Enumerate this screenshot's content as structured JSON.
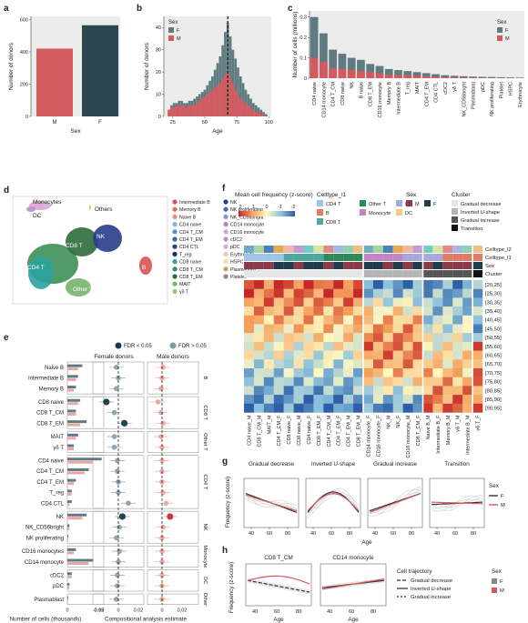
{
  "panels": {
    "a": {
      "letter": "a",
      "ylabel": "Number of donors",
      "xlabel": "Sex",
      "yticks": [
        "0",
        "200",
        "400",
        "600"
      ],
      "categories": [
        "M",
        "F"
      ]
    },
    "b": {
      "letter": "b",
      "ylabel": "Number of donors",
      "xlabel": "Age",
      "yticks": [
        "0",
        "10",
        "20",
        "30",
        "40"
      ],
      "xticks": [
        "25",
        "50",
        "75",
        "100"
      ],
      "legend_title": "Sex",
      "legend": [
        "F",
        "M"
      ]
    },
    "c": {
      "letter": "c",
      "ylabel": "Number of cells (millions)",
      "yticks": [
        "0",
        "0.1",
        "0.2",
        "0.3"
      ],
      "legend_title": "Sex",
      "legend": [
        "F",
        "M"
      ]
    },
    "d": {
      "letter": "d",
      "cluster_labels": [
        "Monocytes",
        "DC",
        "Others",
        "CD8 T",
        "NK",
        "B",
        "CD4 T",
        "Other T"
      ],
      "legend_col1": [
        "Intermediate B",
        "Memory B",
        "Naive B",
        "CD4 naive",
        "CD4 T_CM",
        "CD4 T_EM",
        "CD4 CTL",
        "T_reg",
        "CD8 naive",
        "CD8 T_CM",
        "CD8 T_EM",
        "MAIT",
        "γδ T"
      ],
      "legend_col2": [
        "NK",
        "NK proliferating",
        "NK_CD56bright",
        "CD14 monocyte",
        "CD16 monocyte",
        "cDC2",
        "pDC",
        "Erythrocyte",
        "HSPC",
        "Plasmablast",
        "Platelet"
      ]
    },
    "e": {
      "letter": "e",
      "fdr_sig": "FDR < 0.05",
      "fdr_ns": "FDR > 0.05",
      "col_female": "Female donors",
      "col_male": "Male donors",
      "xlabel_cells": "Number of cells (thousands)",
      "xticks_cells": [
        "0",
        "0.15"
      ],
      "xlabel_est": "Compositional analysis estimate",
      "xticks_f": [
        "-0.02",
        "0",
        "0.02"
      ],
      "xticks_m": [
        "0",
        "0.02"
      ],
      "groups": [
        "B",
        "CD8 T",
        "Other T",
        "CD4 T",
        "NK",
        "Monocyte",
        "DC",
        "Other"
      ]
    },
    "f": {
      "letter": "f",
      "title": "Mean cell frequency (z-score)",
      "scale_ticks": [
        "2",
        "1",
        "0",
        "-1",
        "-2"
      ],
      "celltype_title": "Celltype_l1",
      "celltypes": [
        "CD4 T",
        "Other T",
        "NK",
        "B",
        "Monocyte",
        "DC",
        "CD8 T"
      ],
      "sex_title": "Sex",
      "sex_values": [
        "M",
        "F"
      ],
      "cluster_title": "Cluster",
      "clusters": [
        "Gradual decrease",
        "Inverted U-shape",
        "Gradual increase",
        "Transition"
      ],
      "row_annot": [
        "Celltype_l2",
        "Celltype_l1",
        "Sex",
        "Cluster"
      ],
      "age_bins": [
        "[20,25]",
        "[25,30]",
        "[30,35]",
        "[35,40]",
        "[40,45]",
        "[45,50]",
        "[50,55]",
        "[55,60]",
        "[60,65]",
        "[65,70]",
        "[70,75]",
        "[75,80]",
        "[80,85]",
        "[85,90]",
        "[90,95]"
      ]
    },
    "g": {
      "letter": "g",
      "ylabel": "Frequency (z-score)",
      "xlabel": "Age",
      "xticks": [
        "40",
        "60",
        "80"
      ],
      "titles": [
        "Gradual decrease",
        "Inverted U-shape",
        "Gradual increase",
        "Transition"
      ],
      "legend_title": "Sex",
      "legend": [
        "F",
        "M"
      ]
    },
    "h": {
      "letter": "h",
      "ylabel": "Frequency (z-score)",
      "xlabel": "Age",
      "titles": [
        "CD8 T_CM",
        "CD14 monocyte"
      ],
      "traj_title": "Cell trajectory",
      "traj": [
        "Gradual decrease",
        "Inverted U-shape",
        "Gradual increase"
      ],
      "legend_title": "Sex",
      "legend": [
        "F",
        "M"
      ]
    }
  },
  "colors": {
    "female": "#2d4750",
    "female_light": "#5f7b82",
    "male": "#d35a5f",
    "male_light": "#e8a7a3"
  },
  "chart_data": [
    {
      "type": "bar",
      "panel": "a",
      "categories": [
        "M",
        "F"
      ],
      "values": [
        420,
        565
      ],
      "ylim": [
        0,
        620
      ]
    },
    {
      "type": "bar",
      "panel": "b",
      "x": [
        22,
        24,
        26,
        28,
        30,
        32,
        34,
        36,
        38,
        40,
        42,
        44,
        46,
        48,
        50,
        52,
        54,
        56,
        58,
        60,
        62,
        64,
        66,
        68,
        70,
        72,
        74,
        76,
        78,
        80,
        82,
        84,
        86,
        88,
        90,
        92,
        94,
        96,
        98
      ],
      "series": [
        {
          "name": "F",
          "values": [
            3,
            5,
            6,
            6,
            7,
            7,
            6,
            6,
            7,
            7,
            8,
            9,
            10,
            11,
            12,
            14,
            16,
            18,
            21,
            24,
            27,
            32,
            38,
            42,
            36,
            30,
            26,
            22,
            18,
            15,
            12,
            10,
            8,
            6,
            5,
            4,
            3,
            2,
            1
          ]
        },
        {
          "name": "M",
          "values": [
            3,
            4,
            4,
            5,
            5,
            5,
            5,
            4,
            5,
            5,
            5,
            6,
            7,
            8,
            9,
            10,
            11,
            12,
            13,
            14,
            15,
            17,
            19,
            20,
            18,
            15,
            12,
            10,
            8,
            7,
            6,
            5,
            4,
            3,
            2,
            2,
            1,
            1,
            0
          ]
        }
      ],
      "ylim": [
        0,
        45
      ]
    },
    {
      "type": "bar",
      "panel": "c",
      "categories": [
        "CD4 naive",
        "CD14 monocyte",
        "CD4 T_CM",
        "CD8 naive",
        "NK",
        "B naive",
        "CD8 T_EM",
        "CD16 monocyte",
        "Memory B",
        "Intermediate B",
        "T_reg",
        "MAIT",
        "CD4 T_EM",
        "CD4 CTL",
        "cDC2",
        "γδ T",
        "NK_CD56bright",
        "Plasmablast",
        "pDC",
        "NK proliferating",
        "Platelet",
        "HSPC",
        "Erythrocyte"
      ],
      "series": [
        {
          "name": "F",
          "values": [
            0.3,
            0.22,
            0.14,
            0.12,
            0.1,
            0.09,
            0.07,
            0.06,
            0.045,
            0.04,
            0.035,
            0.03,
            0.025,
            0.02,
            0.015,
            0.012,
            0.01,
            0.008,
            0.007,
            0.006,
            0.005,
            0.004,
            0.003
          ]
        },
        {
          "name": "M",
          "values": [
            0.1,
            0.08,
            0.05,
            0.045,
            0.04,
            0.035,
            0.03,
            0.025,
            0.018,
            0.016,
            0.014,
            0.012,
            0.01,
            0.008,
            0.006,
            0.005,
            0.004,
            0.003,
            0.003,
            0.002,
            0.002,
            0.001,
            0.001
          ]
        }
      ],
      "ylim": [
        0,
        0.33
      ]
    },
    {
      "type": "scatter",
      "panel": "e",
      "categories": [
        "Naive B",
        "Intermediate B",
        "Memory B",
        "CD8 naive",
        "CD8 T_CM",
        "CD8 T_EM",
        "MAIT",
        "γδ T",
        "CD4 naive",
        "CD4 T_CM",
        "CD4 T_EM",
        "T_reg",
        "CD4 CTL",
        "NK",
        "NK_CD56bright",
        "NK proliferating",
        "CD16 monocytes",
        "CD14 monocyte",
        "cDC2",
        "pDC",
        "Plasmablast"
      ],
      "series": [
        {
          "name": "cells_F",
          "values": [
            0.07,
            0.05,
            0.04,
            0.06,
            0.04,
            0.09,
            0.05,
            0.03,
            0.16,
            0.1,
            0.04,
            0.02,
            0.02,
            0.09,
            0.01,
            0.005,
            0.04,
            0.12,
            0.02,
            0.01,
            0.004
          ]
        },
        {
          "name": "cells_M",
          "values": [
            0.05,
            0.04,
            0.03,
            0.05,
            0.04,
            0.06,
            0.04,
            0.03,
            0.12,
            0.08,
            0.03,
            0.02,
            0.01,
            0.07,
            0.01,
            0.004,
            0.03,
            0.1,
            0.02,
            0.01,
            0.003
          ]
        },
        {
          "name": "female_est",
          "values": [
            -0.002,
            0.0,
            -0.002,
            -0.012,
            -0.004,
            0.006,
            -0.004,
            -0.004,
            -0.001,
            -0.001,
            0.0,
            0.0,
            0.01,
            0.004,
            0.001,
            -0.002,
            0.001,
            0.0,
            -0.001,
            -0.001,
            -0.002
          ]
        },
        {
          "name": "male_est",
          "values": [
            0.001,
            0.0,
            -0.001,
            -0.004,
            -0.001,
            0.001,
            -0.001,
            0.0,
            0.0,
            0.0,
            0.0,
            0.001,
            0.004,
            0.008,
            0.001,
            0.0,
            0.0,
            0.0,
            0.0,
            0.0,
            0.0
          ]
        },
        {
          "name": "female_sig",
          "values": [
            0,
            0,
            0,
            1,
            0,
            1,
            0,
            0,
            0,
            0,
            0,
            0,
            0,
            1,
            0,
            0,
            0,
            0,
            0,
            0,
            0
          ]
        },
        {
          "name": "male_sig",
          "values": [
            0,
            0,
            0,
            0,
            0,
            0,
            0,
            0,
            0,
            0,
            0,
            0,
            0,
            1,
            0,
            0,
            0,
            0,
            0,
            0,
            0
          ]
        }
      ]
    },
    {
      "type": "heatmap",
      "panel": "f",
      "columns": [
        "CD4 naive_M",
        "CD8 T_CM_M",
        "MAIT_M",
        "CD4 T_CM_F",
        "CD8 naive_F",
        "CD8 naive_M",
        "CD4 naive_F",
        "CD8 T_EM_F",
        "CD4 T_CM_M",
        "CD4 T_EM_F",
        "CD4 T_EM_M",
        "CD8 T_EM_M",
        "CD14 monocyte_F",
        "CD16 monocyte_F",
        "NK_M",
        "NK_F",
        "CD16 monocyte_M",
        "CD8 T_CM_F",
        "Naive B_M",
        "Intermediate B_F",
        "Memory B_M",
        "γδ T_M",
        "Intermediate B_M",
        "γδ T_F"
      ]
    }
  ]
}
